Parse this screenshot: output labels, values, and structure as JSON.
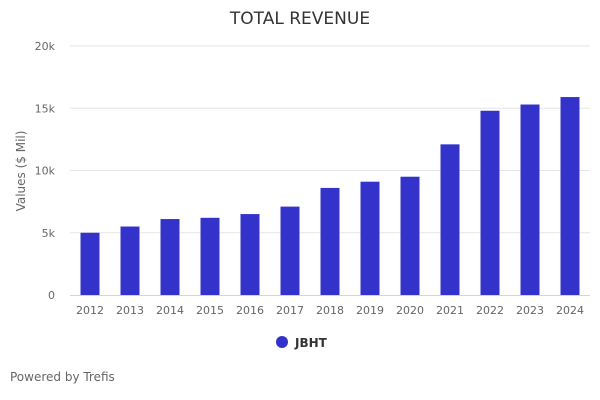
{
  "chart_data": {
    "type": "bar",
    "title": "TOTAL REVENUE",
    "xlabel": "",
    "ylabel": "Values ($ Mil)",
    "categories": [
      "2012",
      "2013",
      "2014",
      "2015",
      "2016",
      "2017",
      "2018",
      "2019",
      "2020",
      "2021",
      "2022",
      "2023",
      "2024"
    ],
    "series": [
      {
        "name": "JBHT",
        "color": "#3333cc",
        "values": [
          5000,
          5500,
          6100,
          6200,
          6500,
          7100,
          8600,
          9100,
          9500,
          12100,
          14800,
          15300,
          15900
        ]
      }
    ],
    "ylim": [
      0,
      20000
    ],
    "yticks": [
      0,
      5000,
      10000,
      15000,
      20000
    ],
    "ytick_labels": [
      "0",
      "5k",
      "10k",
      "15k",
      "20k"
    ],
    "grid": true,
    "legend_position": "bottom-center"
  },
  "credit": "Powered by Trefis",
  "colors": {
    "bar": "#3333cc",
    "grid": "#e6e6e6",
    "axis": "#ccd6eb"
  }
}
